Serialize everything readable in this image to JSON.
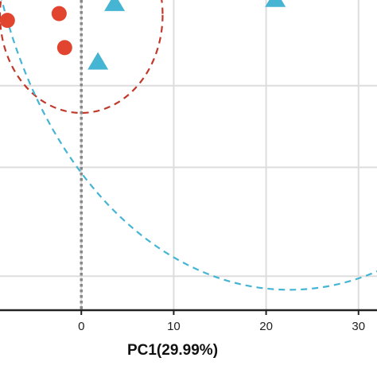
{
  "chart_data": {
    "type": "scatter",
    "title": "",
    "xlabel": "PC1(29.99%)",
    "ylabel": "",
    "xlim": [
      -8.8,
      32
    ],
    "ylim": [
      -10.5,
      12.3
    ],
    "x_ticks": [
      0,
      10,
      20,
      30
    ],
    "y_gridlines": [
      -8,
      0,
      6,
      14
    ],
    "grid": true,
    "legend": "none",
    "zero_line": {
      "x": 0,
      "style": "dotted",
      "color": "#888888"
    },
    "series": [
      {
        "marker": "circle",
        "color": "#e2452f",
        "points": [
          {
            "x": -8.0,
            "y": 10.8
          },
          {
            "x": -2.4,
            "y": 11.3
          },
          {
            "x": -1.8,
            "y": 8.8
          }
        ]
      },
      {
        "marker": "triangle",
        "color": "#45b5d3",
        "points": [
          {
            "x": 3.6,
            "y": 12.0
          },
          {
            "x": 21.0,
            "y": 12.3
          },
          {
            "x": 1.8,
            "y": 7.7
          }
        ]
      }
    ],
    "ellipses": [
      {
        "color": "#c0392b",
        "style": "dashed",
        "cx": 0,
        "cy": 11.2,
        "rx": 8.8,
        "ry": 7.2
      },
      {
        "color": "#45b5d3",
        "style": "dashed",
        "cx": 22.5,
        "cy": 23.0,
        "rx": 33.0,
        "ry": 32.0
      }
    ]
  }
}
